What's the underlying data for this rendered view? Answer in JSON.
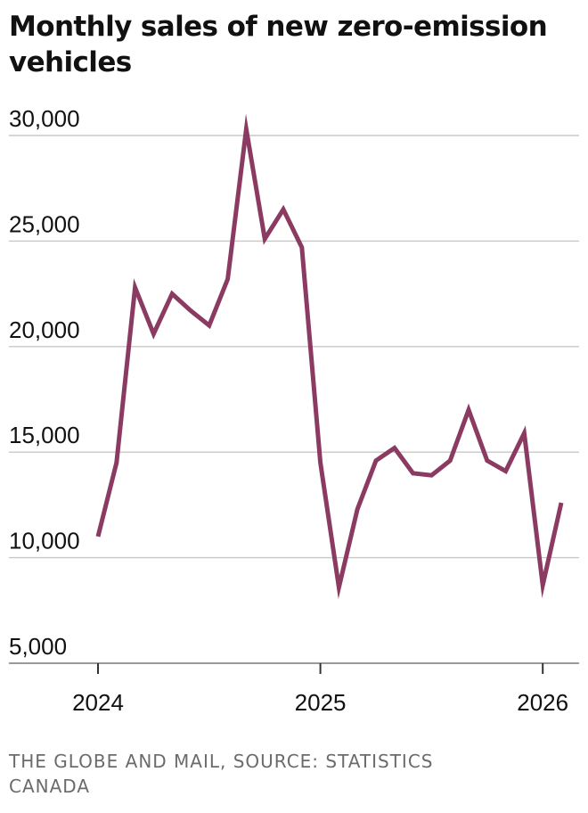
{
  "chart_data": {
    "type": "line",
    "title": "Monthly sales of new zero-emission vehicles",
    "xlabel": "",
    "ylabel": "",
    "ylim": [
      5000,
      30000
    ],
    "yticks": [
      5000,
      10000,
      15000,
      20000,
      25000,
      30000
    ],
    "ytick_labels": [
      "5,000",
      "10,000",
      "15,000",
      "20,000",
      "25,000",
      "30,000"
    ],
    "xticks": [
      {
        "date": "2024-01",
        "label": "2024"
      },
      {
        "date": "2025-01",
        "label": "2025"
      },
      {
        "date": "2026-01",
        "label": "2026"
      }
    ],
    "grid": "horizontal",
    "line_color": "#8b3a62",
    "series": [
      {
        "name": "",
        "x": [
          "2024-01",
          "2024-02",
          "2024-03",
          "2024-04",
          "2024-05",
          "2024-06",
          "2024-07",
          "2024-08",
          "2024-09",
          "2024-10",
          "2024-11",
          "2024-12",
          "2025-01",
          "2025-02",
          "2025-03",
          "2025-04",
          "2025-05",
          "2025-06",
          "2025-07",
          "2025-08",
          "2025-09",
          "2025-10",
          "2025-11",
          "2025-12",
          "2026-01",
          "2026-02"
        ],
        "values": [
          11000,
          14500,
          22800,
          20600,
          22500,
          21700,
          21000,
          23200,
          30300,
          25100,
          26500,
          24700,
          14500,
          8600,
          12300,
          14600,
          15200,
          14000,
          13900,
          14600,
          17000,
          14600,
          14100,
          15900,
          8700,
          12600
        ]
      }
    ]
  },
  "source": "THE GLOBE AND MAIL, SOURCE: STATISTICS CANADA"
}
